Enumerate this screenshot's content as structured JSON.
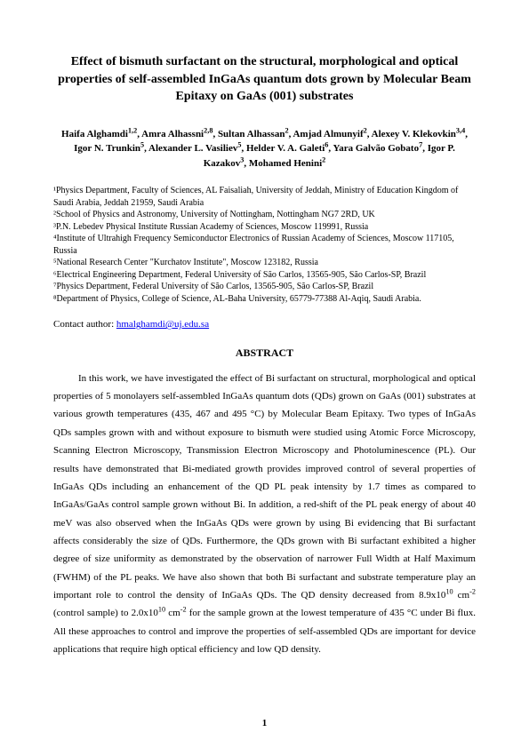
{
  "title": "Effect of bismuth surfactant on the structural, morphological and optical properties of self-assembled InGaAs quantum dots grown by Molecular Beam Epitaxy on GaAs (001) substrates",
  "authors_html": "Haifa Alghamdi<sup>1,2</sup>, Amra Alhassni<sup>2,8</sup>, Sultan Alhassan<sup>2</sup>, Amjad Almunyif<sup>2</sup>, Alexey V. Klekovkin<sup>3,4</sup>, Igor N. Trunkin<sup>5</sup>, Alexander L. Vasiliev<sup>5</sup>, Helder V. A. Galeti<sup>6</sup>, Yara Galvão Gobato<sup>7</sup>, Igor P. Kazakov<sup>3</sup>, Mohamed Henini<sup>2</sup>",
  "affiliations": [
    "¹Physics Department, Faculty of Sciences, AL Faisaliah, University of Jeddah, Ministry of Education Kingdom of Saudi Arabia, Jeddah 21959, Saudi Arabia",
    "²School of Physics and Astronomy, University of Nottingham, Nottingham NG7 2RD, UK",
    "³P.N. Lebedev Physical Institute Russian Academy of Sciences, Moscow 119991, Russia",
    "⁴Institute of Ultrahigh Frequency Semiconductor Electronics of Russian Academy of Sciences, Moscow 117105, Russia",
    "⁵National Research Center \"Kurchatov Institute\", Moscow 123182, Russia",
    "⁶Electrical Engineering Department, Federal University of São Carlos, 13565-905, São Carlos-SP, Brazil",
    "⁷Physics Department, Federal University of São Carlos, 13565-905, São Carlos-SP, Brazil",
    "⁸Department of Physics, College of Science, AL-Baha University, 65779-77388 Al-Aqiq, Saudi Arabia."
  ],
  "contact_label": "Contact author: ",
  "contact_email": "hmalghamdi@uj.edu.sa",
  "abstract_heading": "ABSTRACT",
  "abstract_html": "In this work, we have investigated the effect of Bi surfactant on structural, morphological and optical properties of 5 monolayers self-assembled InGaAs quantum dots (QDs) grown on GaAs (001) substrates at various growth temperatures (435, 467 and 495 °C) by Molecular Beam Epitaxy. Two types of InGaAs QDs samples grown with and without exposure to bismuth were studied using Atomic Force Microscopy, Scanning Electron Microscopy, Transmission Electron Microscopy and Photoluminescence (PL). Our results have demonstrated that Bi-mediated growth provides improved control of several properties of InGaAs QDs including an enhancement of the QD PL peak intensity by 1.7 times as compared to InGaAs/GaAs control sample grown without Bi. In addition, a red-shift of the PL peak energy of about 40 meV was also observed when the InGaAs QDs were grown by using Bi evidencing that Bi surfactant affects considerably the size of QDs. Furthermore, the QDs grown with Bi surfactant exhibited a higher degree of size uniformity as demonstrated by the observation of narrower Full Width at Half Maximum (FWHM) of the PL peaks. We have also shown that both Bi surfactant and substrate temperature play an important role to control the density of InGaAs QDs. The QD density decreased from 8.9x10<sup>10</sup> cm<sup>-2</sup> (control sample) to 2.0x10<sup>10</sup> cm<sup>-2</sup> for the sample grown at the lowest temperature of 435 °C under Bi flux. All these approaches to control and improve the properties of self-assembled QDs are important for device applications that require high optical efficiency and low QD density.",
  "page_number": "1"
}
